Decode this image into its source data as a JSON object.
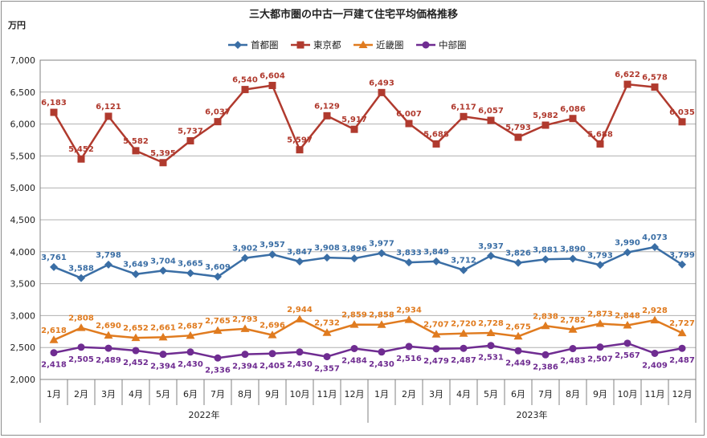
{
  "chart_data": {
    "type": "line",
    "title": "三大都市圏の中古一戸建て住宅平均価格推移",
    "ylabel": "万円",
    "ylim": [
      2000,
      7000
    ],
    "yticks": [
      2000,
      2500,
      3000,
      3500,
      4000,
      4500,
      5000,
      5500,
      6000,
      6500,
      7000
    ],
    "ytick_labels": [
      "2,000",
      "2,500",
      "3,000",
      "3,500",
      "4,000",
      "4,500",
      "5,000",
      "5,500",
      "6,000",
      "6,500",
      "7,000"
    ],
    "categories": [
      "1月",
      "2月",
      "3月",
      "4月",
      "5月",
      "6月",
      "7月",
      "8月",
      "9月",
      "10月",
      "11月",
      "12月",
      "1月",
      "2月",
      "3月",
      "4月",
      "5月",
      "6月",
      "7月",
      "8月",
      "9月",
      "10月",
      "11月",
      "12月"
    ],
    "year_groups": [
      {
        "label": "2022年",
        "span": [
          0,
          11
        ]
      },
      {
        "label": "2023年",
        "span": [
          12,
          23
        ]
      }
    ],
    "legend_position": "top-center",
    "series": [
      {
        "name": "首都圏",
        "color": "#3a6ea5",
        "marker": "diamond",
        "label_position": "above",
        "values": [
          3761,
          3588,
          3798,
          3649,
          3704,
          3665,
          3609,
          3902,
          3957,
          3847,
          3908,
          3896,
          3977,
          3833,
          3849,
          3712,
          3937,
          3826,
          3881,
          3890,
          3793,
          3990,
          4073,
          3799
        ],
        "labels": [
          "3,761",
          "3,588",
          "3,798",
          "3,649",
          "3,704",
          "3,665",
          "3,609",
          "3,902",
          "3,957",
          "3,847",
          "3,908",
          "3,896",
          "3,977",
          "3,833",
          "3,849",
          "3,712",
          "3,937",
          "3,826",
          "3,881",
          "3,890",
          "3,793",
          "3,990",
          "4,073",
          "3,799"
        ]
      },
      {
        "name": "東京都",
        "color": "#b03a2e",
        "marker": "square",
        "label_position": "above",
        "values": [
          6183,
          5452,
          6121,
          5582,
          5395,
          5737,
          6037,
          6540,
          6604,
          5597,
          6129,
          5917,
          6493,
          6007,
          5688,
          6117,
          6057,
          5793,
          5982,
          6086,
          5688,
          6622,
          6578,
          6035
        ],
        "labels": [
          "6,183",
          "5,452",
          "6,121",
          "5,582",
          "5,395",
          "5,737",
          "6,037",
          "6,540",
          "6,604",
          "5,597",
          "6,129",
          "5,917",
          "6,493",
          "6,007",
          "5,688",
          "6,117",
          "6,057",
          "5,793",
          "5,982",
          "6,086",
          "5,688",
          "6,622",
          "6,578",
          "6,035"
        ]
      },
      {
        "name": "近畿圏",
        "color": "#e07b1f",
        "marker": "triangle",
        "label_position": "above",
        "values": [
          2618,
          2808,
          2690,
          2652,
          2661,
          2687,
          2765,
          2793,
          2696,
          2944,
          2732,
          2859,
          2858,
          2934,
          2707,
          2720,
          2728,
          2675,
          2838,
          2782,
          2873,
          2848,
          2928,
          2727
        ],
        "labels": [
          "2,618",
          "2,808",
          "2,690",
          "2,652",
          "2,661",
          "2,687",
          "2,765",
          "2,793",
          "2,696",
          "2,944",
          "2,732",
          "2,859",
          "2,858",
          "2,934",
          "2,707",
          "2,720",
          "2,728",
          "2,675",
          "2,838",
          "2,782",
          "2,873",
          "2,848",
          "2,928",
          "2,727"
        ]
      },
      {
        "name": "中部圏",
        "color": "#6f2c91",
        "marker": "circle",
        "label_position": "below",
        "values": [
          2418,
          2505,
          2489,
          2452,
          2394,
          2430,
          2336,
          2394,
          2405,
          2430,
          2357,
          2484,
          2430,
          2516,
          2479,
          2487,
          2531,
          2449,
          2386,
          2483,
          2507,
          2567,
          2409,
          2487
        ],
        "labels": [
          "2,418",
          "2,505",
          "2,489",
          "2,452",
          "2,394",
          "2,430",
          "2,336",
          "2,394",
          "2,405",
          "2,430",
          "2,357",
          "2,484",
          "2,430",
          "2,516",
          "2,479",
          "2,487",
          "2,531",
          "2,449",
          "2,386",
          "2,483",
          "2,507",
          "2,567",
          "2,409",
          "2,487"
        ]
      }
    ]
  }
}
